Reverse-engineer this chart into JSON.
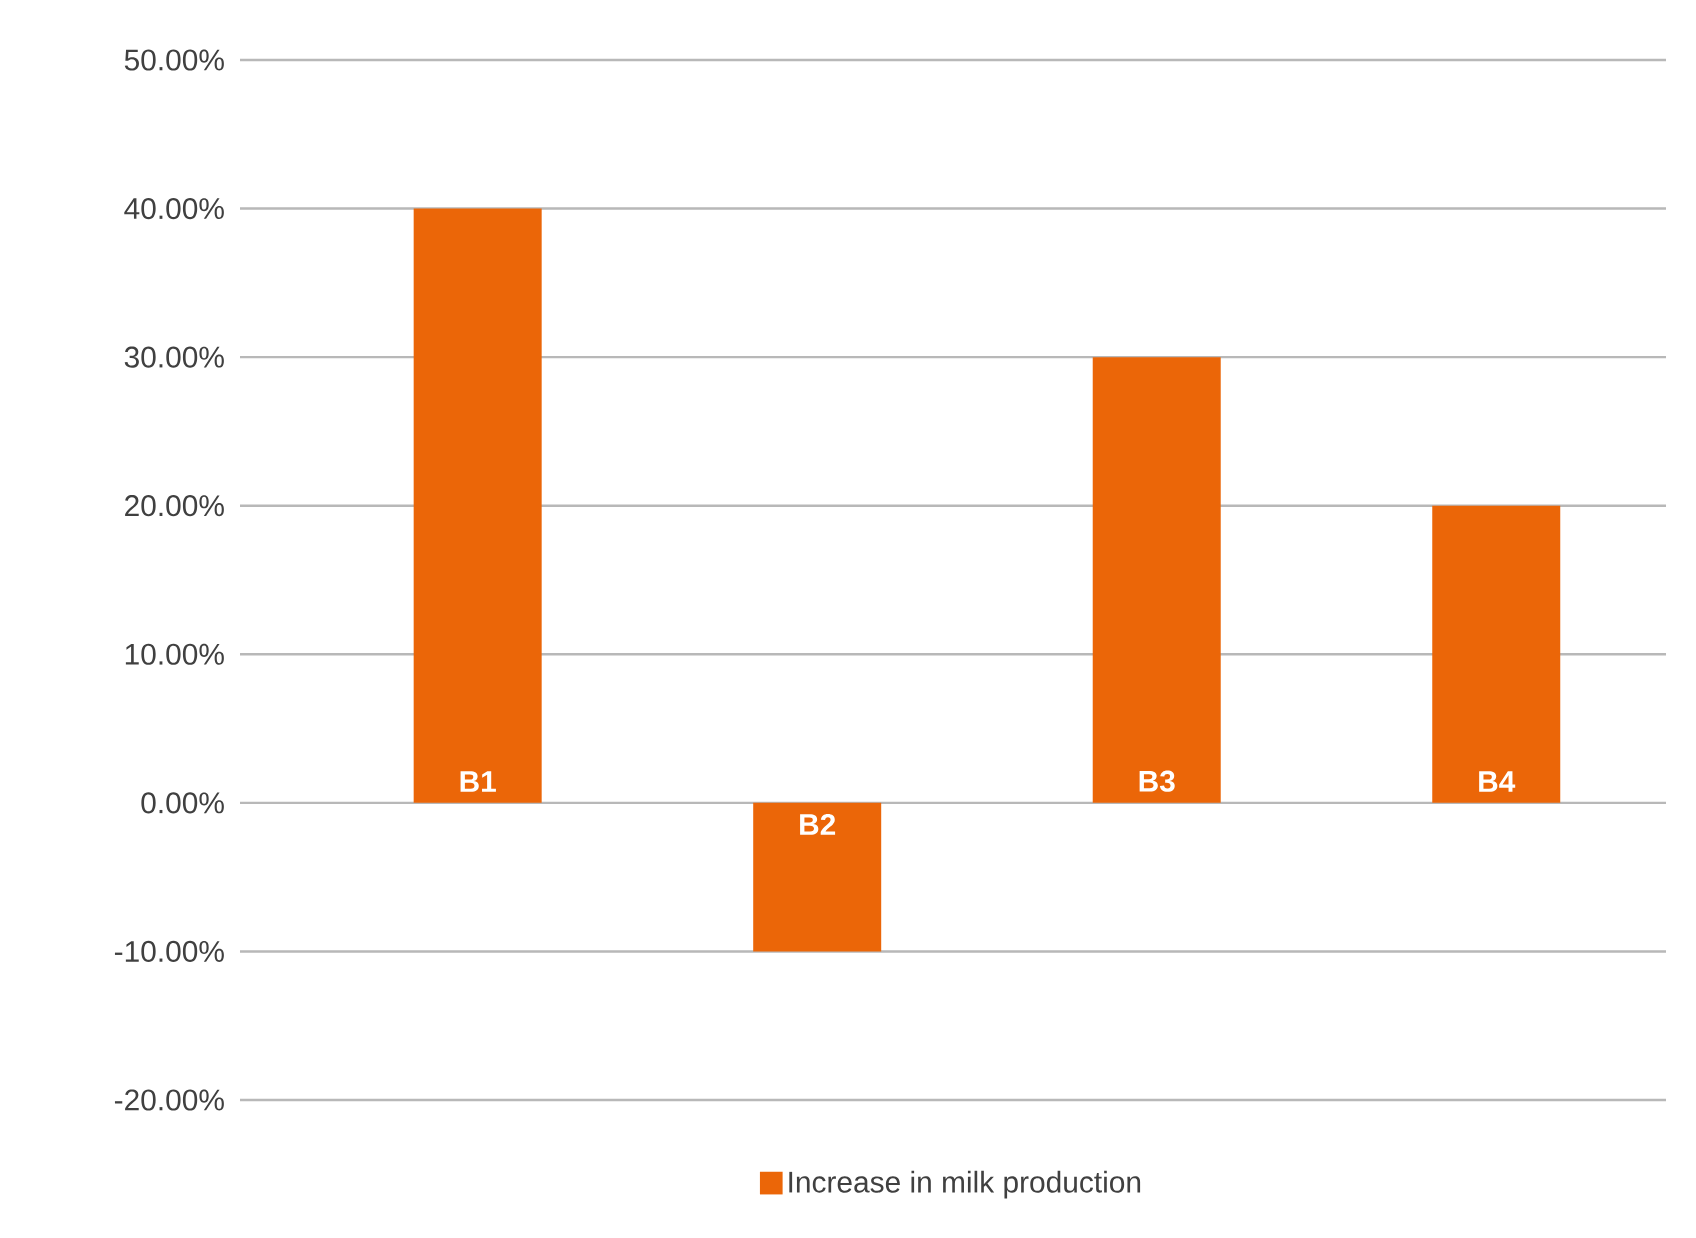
{
  "chart_data": {
    "type": "bar",
    "categories": [
      "B1",
      "B2",
      "B3",
      "B4"
    ],
    "series": [
      {
        "name": "Increase in milk production",
        "color": "#eb6608",
        "values": [
          40,
          -10,
          30,
          20
        ]
      }
    ],
    "ylim": [
      -20,
      50
    ],
    "yticks": [
      {
        "value": -20,
        "label": "-20.00%"
      },
      {
        "value": -10,
        "label": "-10.00%"
      },
      {
        "value": 0,
        "label": "0.00%"
      },
      {
        "value": 10,
        "label": "10.00%"
      },
      {
        "value": 20,
        "label": "20.00%"
      },
      {
        "value": 30,
        "label": "30.00%"
      },
      {
        "value": 40,
        "label": "40.00%"
      },
      {
        "value": 50,
        "label": "50.00%"
      }
    ],
    "grid": "y",
    "legend": "bottom"
  }
}
